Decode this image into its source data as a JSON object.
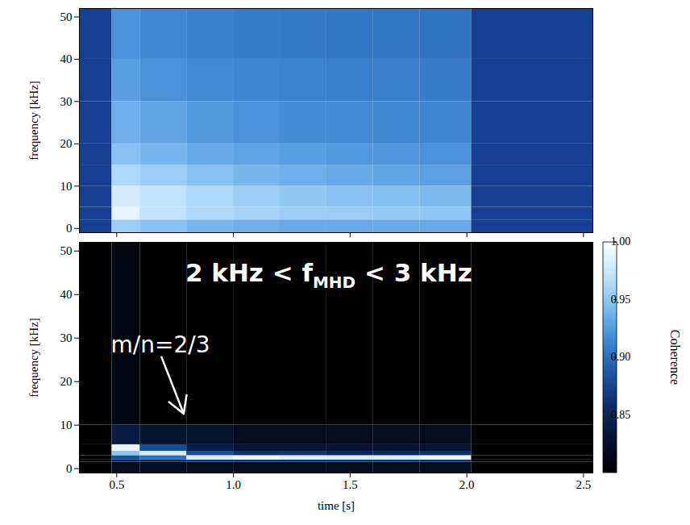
{
  "chart_data": [
    {
      "type": "heatmap",
      "ylabel": "frequency [kHz]",
      "x_edges": [
        0.34,
        0.48,
        0.6,
        0.8,
        1.0,
        1.2,
        1.4,
        1.6,
        1.8,
        2.02,
        2.54
      ],
      "y_edges": [
        -1,
        2,
        5,
        10,
        15,
        20,
        30,
        40,
        52
      ],
      "values": [
        [
          0.12,
          0.75,
          0.7,
          0.65,
          0.62,
          0.6,
          0.6,
          0.6,
          0.6,
          0.12
        ],
        [
          0.12,
          0.95,
          0.85,
          0.8,
          0.78,
          0.75,
          0.75,
          0.73,
          0.72,
          0.12
        ],
        [
          0.12,
          0.9,
          0.85,
          0.8,
          0.75,
          0.72,
          0.7,
          0.68,
          0.66,
          0.12
        ],
        [
          0.12,
          0.8,
          0.75,
          0.7,
          0.65,
          0.62,
          0.6,
          0.58,
          0.56,
          0.12
        ],
        [
          0.12,
          0.7,
          0.65,
          0.6,
          0.57,
          0.55,
          0.53,
          0.52,
          0.5,
          0.12
        ],
        [
          0.12,
          0.62,
          0.58,
          0.53,
          0.5,
          0.48,
          0.47,
          0.46,
          0.45,
          0.12
        ],
        [
          0.12,
          0.55,
          0.5,
          0.47,
          0.45,
          0.44,
          0.43,
          0.42,
          0.41,
          0.12
        ],
        [
          0.12,
          0.5,
          0.46,
          0.43,
          0.41,
          0.4,
          0.39,
          0.38,
          0.37,
          0.12
        ]
      ],
      "xlim": [
        0.34,
        2.54
      ],
      "ylim": [
        -1,
        52
      ],
      "xticks": [
        0.5,
        {
          "value": 1,
          "label": "1.0"
        },
        1.5,
        {
          "value": 2,
          "label": "2.0"
        },
        2.5
      ],
      "yticks": [
        0,
        10,
        20,
        30,
        40,
        50
      ],
      "tick_labels": "y"
    },
    {
      "type": "heatmap",
      "xlabel": "time [s]",
      "ylabel": "frequency [kHz]",
      "x_edges": [
        0.34,
        0.48,
        0.6,
        0.8,
        1.0,
        1.2,
        1.4,
        1.6,
        1.8,
        2.02,
        2.54
      ],
      "y_edges": [
        -1,
        1.5,
        2,
        3,
        4,
        5.5,
        10,
        52
      ],
      "values": [
        [
          0.8,
          0.82,
          0.82,
          0.82,
          0.82,
          0.82,
          0.82,
          0.82,
          0.82,
          0.8
        ],
        [
          0.8,
          0.85,
          0.85,
          0.86,
          0.86,
          0.86,
          0.86,
          0.86,
          0.86,
          0.8
        ],
        [
          0.8,
          0.88,
          0.9,
          0.98,
          0.99,
          0.98,
          0.98,
          0.98,
          0.99,
          0.8
        ],
        [
          0.8,
          0.95,
          0.98,
          0.88,
          0.86,
          0.86,
          0.85,
          0.85,
          0.86,
          0.8
        ],
        [
          0.8,
          0.99,
          0.88,
          0.84,
          0.83,
          0.83,
          0.83,
          0.83,
          0.83,
          0.8
        ],
        [
          0.8,
          0.84,
          0.83,
          0.83,
          0.82,
          0.82,
          0.82,
          0.82,
          0.82,
          0.8
        ],
        [
          0.8,
          0.81,
          0.8,
          0.8,
          0.8,
          0.8,
          0.8,
          0.8,
          0.8,
          0.8
        ]
      ],
      "xlim": [
        0.34,
        2.54
      ],
      "ylim": [
        -1,
        52
      ],
      "xticks": [
        0.5,
        {
          "value": 1,
          "label": "1.0"
        },
        1.5,
        {
          "value": 2,
          "label": "2.0"
        },
        2.5
      ],
      "yticks": [
        0,
        10,
        20,
        30,
        40,
        50
      ],
      "colorbar": {
        "label": "Coherence",
        "range": [
          0.8,
          1.0
        ],
        "ticks": [
          0.85,
          {
            "value": 0.9,
            "label": "0.90"
          },
          0.95,
          {
            "value": 1,
            "label": "1.00"
          }
        ]
      },
      "annotations": [
        {
          "text": "2 kHz < f",
          "subscript": "MHD",
          "tail": " < 3 kHz",
          "x": 1.41,
          "y": 43
        },
        {
          "text": "m/n=2/3",
          "x": 0.687,
          "y": 26.3,
          "arrow_to": [
            0.787,
            12.6
          ]
        }
      ]
    }
  ]
}
